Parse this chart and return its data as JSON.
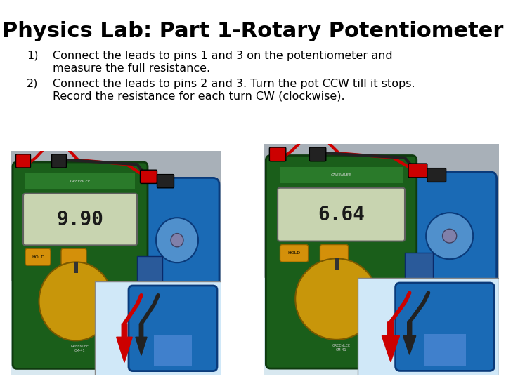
{
  "title": "Physics Lab: Part 1-Rotary Potentiometer",
  "title_fontsize": 22,
  "title_fontweight": "bold",
  "item1_label": "1)",
  "item1_line1": "Connect the leads to pins 1 and 3 on the potentiometer and",
  "item1_line2": "measure the full resistance.",
  "item2_label": "2)",
  "item2_line1": "Connect the leads to pins 2 and 3. Turn the pot CCW till it stops.",
  "item2_line2": "Record the resistance for each turn CW (clockwise).",
  "text_fontsize": 11.5,
  "background_color": "#ffffff",
  "text_color": "#000000",
  "img1_display": "9.90",
  "img2_display": "6.64",
  "meter_green": "#1a5e1a",
  "meter_dark": "#0f3a0f",
  "display_bg": "#c8d4b0",
  "dial_color": "#c8960a",
  "pot_blue": "#1a6ab5",
  "pot_dark_blue": "#0a3a7a",
  "foam_gray": "#b8c0c8",
  "foam_blue": "#c0ccd8",
  "wire_red": "#cc0000",
  "wire_black": "#111111",
  "hold_btn": "#d4900a"
}
